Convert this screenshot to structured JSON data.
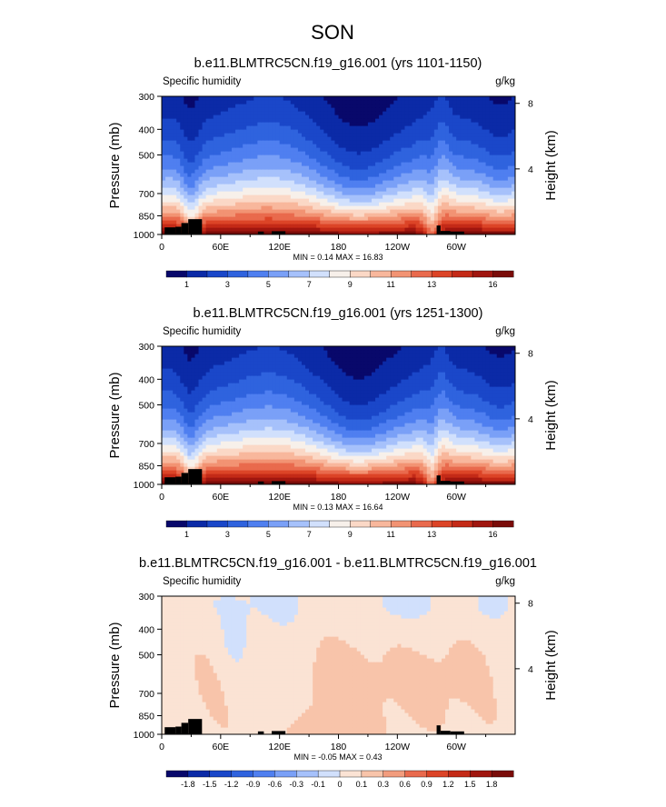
{
  "page_title": "SON",
  "chart_data": [
    {
      "type": "heatmap",
      "title": "b.e11.BLMTRC5CN.f19_g16.001 (yrs 1101-1150)",
      "left_string": "Specific humidity",
      "right_string": "g/kg",
      "ylabel": "Pressure (mb)",
      "ylabel_right": "Height (km)",
      "xticks": [
        "0",
        "60E",
        "120E",
        "180",
        "120W",
        "60W"
      ],
      "xtick_lon": [
        0,
        60,
        120,
        180,
        240,
        300
      ],
      "xlim": [
        0,
        360
      ],
      "yticks": [
        "300",
        "400",
        "500",
        "700",
        "850",
        "1000"
      ],
      "ytick_p": [
        300,
        400,
        500,
        700,
        850,
        1000
      ],
      "ylim": [
        1000,
        300
      ],
      "height_ticks": [
        "8",
        "4"
      ],
      "height_tick_km": [
        8,
        4
      ],
      "min_max": "MIN =   0.14  MAX =   16.83",
      "min": 0.14,
      "max": 16.83,
      "colorbar_labels": [
        "1",
        "3",
        "5",
        "7",
        "9",
        "11",
        "13",
        "16"
      ],
      "colorbar_levels": [
        1,
        2,
        3,
        4,
        5,
        6,
        7,
        8,
        9,
        10,
        11,
        12,
        13,
        14,
        15,
        16
      ],
      "colors": [
        "#08086b",
        "#0b2aa7",
        "#1a47c9",
        "#2f63de",
        "#4f7ff0",
        "#7aa0f7",
        "#a6c1fb",
        "#d1e0fc",
        "#f7f0ea",
        "#fbd8c6",
        "#f8b79c",
        "#f29373",
        "#e96a4d",
        "#dc4427",
        "#c42a17",
        "#a0160f",
        "#7a0c09"
      ],
      "field": "absolute"
    },
    {
      "type": "heatmap",
      "title": "b.e11.BLMTRC5CN.f19_g16.001 (yrs 1251-1300)",
      "left_string": "Specific humidity",
      "right_string": "g/kg",
      "ylabel": "Pressure (mb)",
      "ylabel_right": "Height (km)",
      "xticks": [
        "0",
        "60E",
        "120E",
        "180",
        "120W",
        "60W"
      ],
      "xtick_lon": [
        0,
        60,
        120,
        180,
        240,
        300
      ],
      "xlim": [
        0,
        360
      ],
      "yticks": [
        "300",
        "400",
        "500",
        "700",
        "850",
        "1000"
      ],
      "ytick_p": [
        300,
        400,
        500,
        700,
        850,
        1000
      ],
      "ylim": [
        1000,
        300
      ],
      "height_ticks": [
        "8",
        "4"
      ],
      "height_tick_km": [
        8,
        4
      ],
      "min_max": "MIN =   0.13  MAX =   16.64",
      "min": 0.13,
      "max": 16.64,
      "colorbar_labels": [
        "1",
        "3",
        "5",
        "7",
        "9",
        "11",
        "13",
        "16"
      ],
      "colorbar_levels": [
        1,
        2,
        3,
        4,
        5,
        6,
        7,
        8,
        9,
        10,
        11,
        12,
        13,
        14,
        15,
        16
      ],
      "colors": [
        "#08086b",
        "#0b2aa7",
        "#1a47c9",
        "#2f63de",
        "#4f7ff0",
        "#7aa0f7",
        "#a6c1fb",
        "#d1e0fc",
        "#f7f0ea",
        "#fbd8c6",
        "#f8b79c",
        "#f29373",
        "#e96a4d",
        "#dc4427",
        "#c42a17",
        "#a0160f",
        "#7a0c09"
      ],
      "field": "absolute"
    },
    {
      "type": "heatmap",
      "title": "b.e11.BLMTRC5CN.f19_g16.001 - b.e11.BLMTRC5CN.f19_g16.001",
      "left_string": "Specific humidity",
      "right_string": "g/kg",
      "ylabel": "Pressure (mb)",
      "ylabel_right": "Height (km)",
      "xticks": [
        "0",
        "60E",
        "120E",
        "180",
        "120W",
        "60W"
      ],
      "xtick_lon": [
        0,
        60,
        120,
        180,
        240,
        300
      ],
      "xlim": [
        0,
        360
      ],
      "yticks": [
        "300",
        "400",
        "500",
        "700",
        "850",
        "1000"
      ],
      "ytick_p": [
        300,
        400,
        500,
        700,
        850,
        1000
      ],
      "ylim": [
        1000,
        300
      ],
      "height_ticks": [
        "8",
        "4"
      ],
      "height_tick_km": [
        8,
        4
      ],
      "min_max": "MIN =  -0.05  MAX =   0.43",
      "min": -0.05,
      "max": 0.43,
      "colorbar_labels": [
        "-1.8",
        "-1.5",
        "-1.2",
        "-0.9",
        "-0.6",
        "-0.3",
        "-0.1",
        "0",
        "0.1",
        "0.3",
        "0.6",
        "0.9",
        "1.2",
        "1.5",
        "1.8"
      ],
      "colorbar_levels": [
        -1.8,
        -1.5,
        -1.2,
        -0.9,
        -0.6,
        -0.3,
        -0.1,
        0,
        0.1,
        0.3,
        0.6,
        0.9,
        1.2,
        1.5,
        1.8
      ],
      "colors": [
        "#08086b",
        "#0b2aa7",
        "#1a47c9",
        "#2f63de",
        "#4f7ff0",
        "#7aa0f7",
        "#a6c1fb",
        "#d1e0fc",
        "#fbe3d4",
        "#f8c4aa",
        "#f29c7d",
        "#e96a4d",
        "#dc4427",
        "#c42a17",
        "#a0160f",
        "#7a0c09"
      ],
      "field": "difference"
    }
  ]
}
